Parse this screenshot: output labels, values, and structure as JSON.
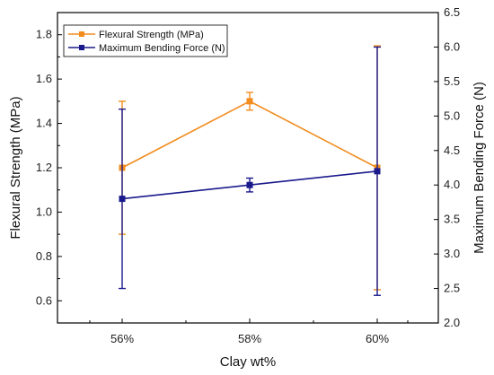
{
  "chart_data": {
    "type": "line",
    "categories": [
      "56%",
      "58%",
      "60%"
    ],
    "xlabel": "Clay wt%",
    "ylabel_left": "Flexural Strength (MPa)",
    "ylabel_right": "Maximum Bending Force (N)",
    "ylim_left": [
      0.5,
      1.9
    ],
    "ylim_right": [
      2.0,
      6.5
    ],
    "yticks_left": [
      "0.6",
      "0.8",
      "1.0",
      "1.2",
      "1.4",
      "1.6",
      "1.8"
    ],
    "yticks_right": [
      "2.0",
      "2.5",
      "3.0",
      "3.5",
      "4.0",
      "4.5",
      "5.0",
      "5.5",
      "6.0",
      "6.5"
    ],
    "legend_position": "top-left",
    "grid": false,
    "series": [
      {
        "name": "Flexural Strength (MPa)",
        "axis": "left",
        "color": "#f28c1e",
        "marker": "square",
        "values": [
          1.2,
          1.5,
          1.2
        ],
        "err_low": [
          0.9,
          1.46,
          0.65
        ],
        "err_high": [
          1.5,
          1.54,
          1.75
        ]
      },
      {
        "name": "Maximum Bending Force (N)",
        "axis": "right",
        "color": "#1a1a8c",
        "marker": "square",
        "values": [
          3.8,
          4.0,
          4.2
        ],
        "err_low": [
          2.5,
          3.9,
          2.4
        ],
        "err_high": [
          5.1,
          4.1,
          6.0
        ]
      }
    ]
  }
}
